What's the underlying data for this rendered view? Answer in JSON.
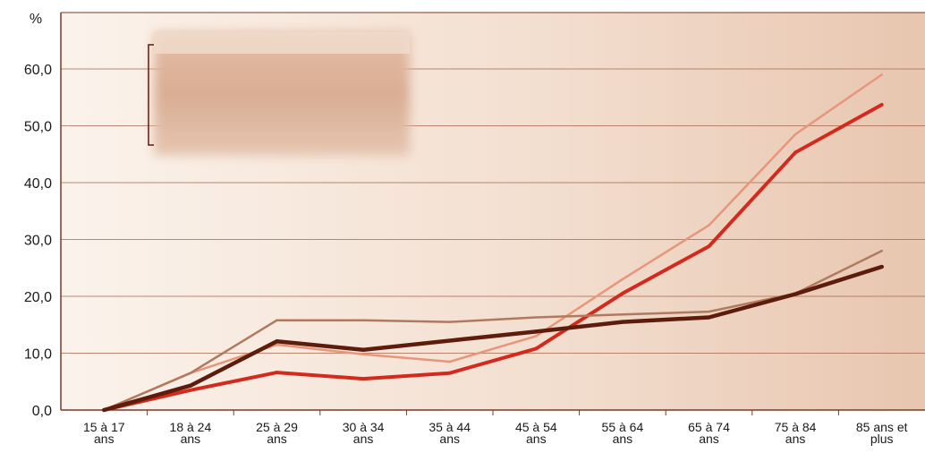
{
  "chart_data": {
    "type": "line",
    "y_unit_label": "%",
    "categories": [
      [
        "15 à 17",
        "ans"
      ],
      [
        "18 à 24",
        "ans"
      ],
      [
        "25 à 29",
        "ans"
      ],
      [
        "30 à 34",
        "ans"
      ],
      [
        "35 à 44",
        "ans"
      ],
      [
        "45 à 54",
        "ans"
      ],
      [
        "55 à 64",
        "ans"
      ],
      [
        "65 à 74",
        "ans"
      ],
      [
        "75 à 84",
        "ans"
      ],
      [
        "85 ans et",
        "plus"
      ]
    ],
    "y_ticks": [
      "0,0",
      "10,0",
      "20,0",
      "30,0",
      "40,0",
      "50,0",
      "60,0"
    ],
    "ylim": [
      0,
      60
    ],
    "grid": true,
    "legend": "top-left (blurred, unreadable)",
    "series": [
      {
        "color": "#e8967a",
        "width": 2.5,
        "values": [
          0,
          6.5,
          11.5,
          9.8,
          8.5,
          13,
          23,
          32.5,
          48.5,
          59
        ]
      },
      {
        "color": "#d42a1e",
        "width": 4,
        "values": [
          0,
          3.5,
          6.6,
          5.5,
          6.5,
          10.8,
          20.5,
          28.8,
          45.3,
          53.7
        ]
      },
      {
        "color": "#b07a5e",
        "width": 2.5,
        "values": [
          0,
          6.5,
          15.8,
          15.8,
          15.5,
          16.3,
          16.8,
          17.3,
          20.5,
          28
        ]
      },
      {
        "color": "#5e1c0c",
        "width": 4.5,
        "values": [
          0,
          4.3,
          12.1,
          10.6,
          12.2,
          13.8,
          15.5,
          16.3,
          20.4,
          25.2
        ]
      }
    ]
  },
  "colors": {
    "axis": "#7a3a28",
    "grid": "#a4654a",
    "background_start": "#fbf3ec",
    "background_end": "#e9c9b3"
  }
}
